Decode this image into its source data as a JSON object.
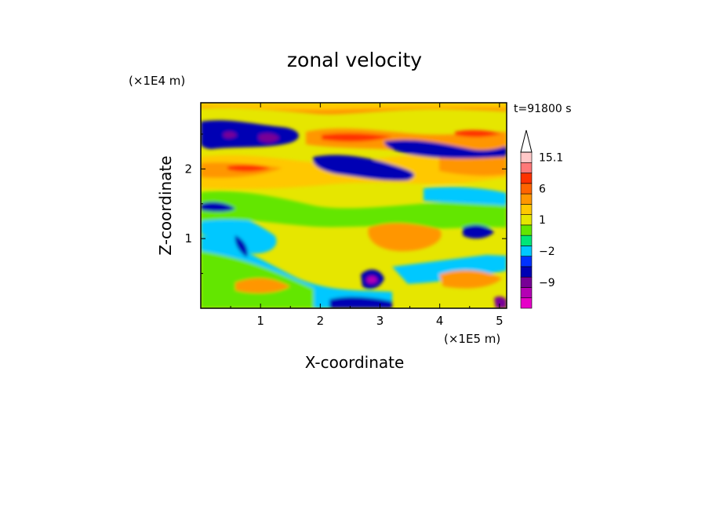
{
  "chart_data": {
    "type": "heatmap",
    "title": "zonal velocity",
    "xlabel": "X-coordinate",
    "ylabel": "Z-coordinate",
    "x_unit": "(×1E5 m)",
    "y_unit": "(×1E4 m)",
    "time_label": "t=91800 s",
    "x_ticks": [
      "1",
      "2",
      "3",
      "4",
      "5"
    ],
    "y_ticks": [
      "1",
      "2"
    ],
    "xlim": [
      0,
      5.12
    ],
    "ylim": [
      0,
      2.95
    ],
    "colorbar": {
      "levels": [
        -15,
        -12,
        -9,
        -6,
        -3,
        -2,
        -1,
        0,
        1,
        2,
        3,
        6,
        9,
        12,
        15.1
      ],
      "labels": [
        "15.1",
        "6",
        "1",
        "−2",
        "−9"
      ],
      "label_values": [
        15.1,
        6,
        1,
        -2,
        -9
      ],
      "colors": [
        "#e600c8",
        "#b400b4",
        "#780096",
        "#0000b4",
        "#0032ff",
        "#00c8ff",
        "#00e678",
        "#64e600",
        "#e6e600",
        "#ffc800",
        "#ff9600",
        "#ff6400",
        "#ff3200",
        "#ff7878",
        "#ffc8c8"
      ],
      "extend_top": true
    }
  }
}
